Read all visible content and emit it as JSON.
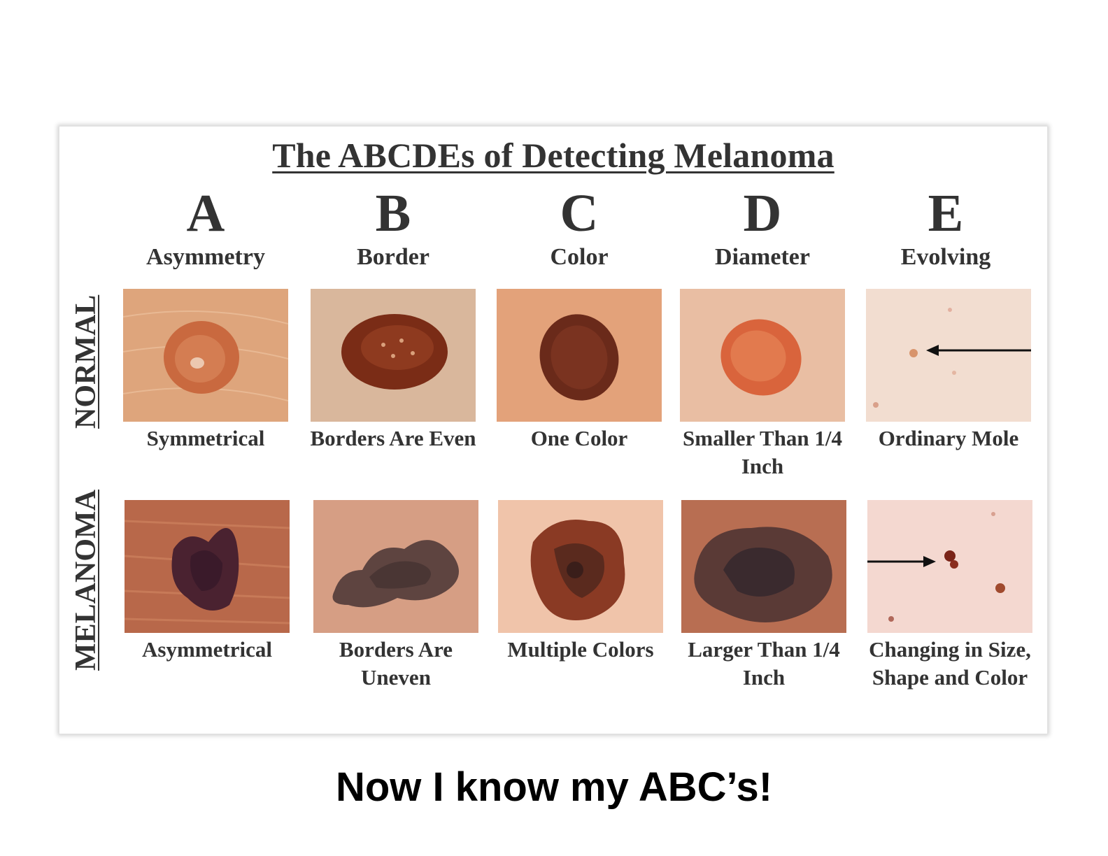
{
  "title": "The ABCDEs of Detecting Melanoma",
  "columns": [
    {
      "letter": "A",
      "name": "Asymmetry"
    },
    {
      "letter": "B",
      "name": "Border"
    },
    {
      "letter": "C",
      "name": "Color"
    },
    {
      "letter": "D",
      "name": "Diameter"
    },
    {
      "letter": "E",
      "name": "Evolving"
    }
  ],
  "rows": {
    "normal": {
      "label": "NORMAL",
      "captions": [
        "Symmetrical",
        "Borders Are Even",
        "One Color",
        "Smaller Than 1/4 Inch",
        "Ordinary Mole"
      ]
    },
    "melanoma": {
      "label": "MELANOMA",
      "captions": [
        "Asymmetrical",
        "Borders Are Uneven",
        "Multiple Colors",
        "Larger Than 1/4 Inch",
        "Changing in Size, Shape and Color"
      ]
    }
  },
  "images": {
    "normal": [
      "symmetrical-mole-photo",
      "even-border-mole-photo",
      "one-color-mole-photo",
      "small-diameter-mole-photo",
      "ordinary-mole-photo"
    ],
    "melanoma": [
      "asymmetrical-melanoma-photo",
      "uneven-border-melanoma-photo",
      "multicolor-melanoma-photo",
      "large-diameter-melanoma-photo",
      "evolving-melanoma-photo"
    ]
  },
  "footer": "Now I know my ABC’s!"
}
